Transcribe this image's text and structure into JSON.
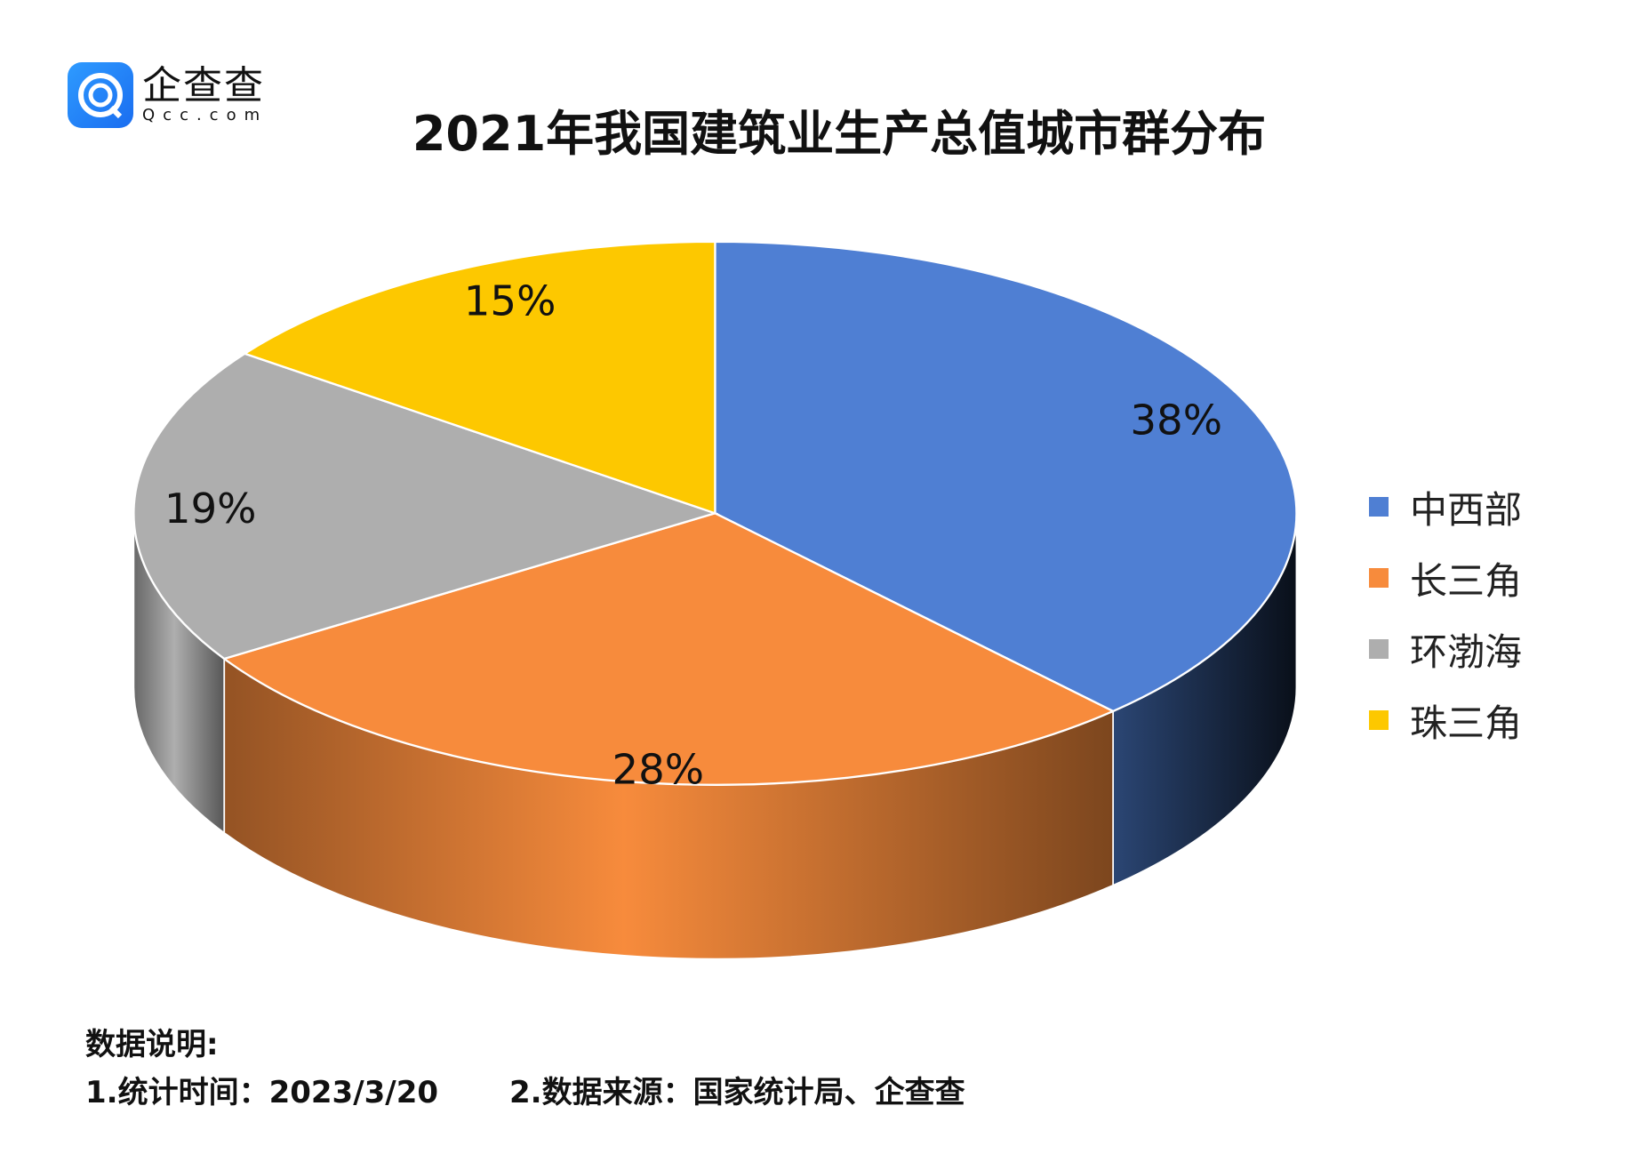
{
  "logo": {
    "cn": "企查查",
    "en": "Qcc.com"
  },
  "chart_data": {
    "type": "pie",
    "title": "2021年我国建筑业生产总值城市群分布",
    "three_d": true,
    "legend_placement": "right",
    "categories": [
      "中西部",
      "长三角",
      "环渤海",
      "珠三角"
    ],
    "values": [
      38,
      28,
      19,
      15
    ],
    "labels": [
      "38%",
      "28%",
      "19%",
      "15%"
    ],
    "colors": [
      "#4f7fd3",
      "#f78b3c",
      "#aeaeae",
      "#fdc800"
    ]
  },
  "footer": {
    "heading": "数据说明:",
    "time": "1.统计时间：2023/3/20",
    "source": "2.数据来源：国家统计局、企查查"
  }
}
